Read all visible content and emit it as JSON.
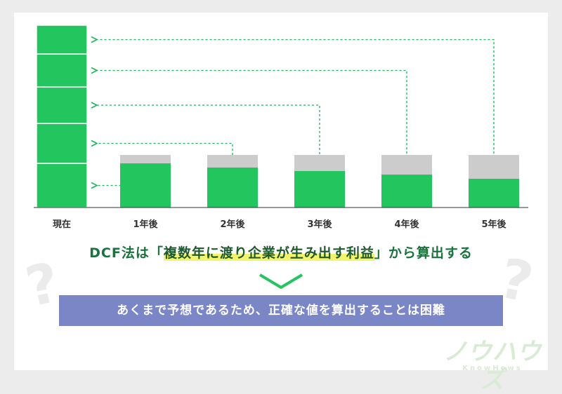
{
  "colors": {
    "present_value": "#22c55e",
    "discount": "#cccccc",
    "arrow": "#22b35a",
    "statement": "#19733d",
    "highlight": "#f4f36a",
    "conclusion_bg": "#7a86c6"
  },
  "chart_data": {
    "type": "bar",
    "categories": [
      "現在",
      "1年後",
      "2年後",
      "3年後",
      "4年後",
      "5年後"
    ],
    "series": [
      {
        "values": [
          null,
          63,
          57,
          52,
          47,
          41
        ]
      },
      {
        "values": [
          null,
          12,
          18,
          23,
          28,
          34
        ]
      }
    ],
    "present_stack": [
      63,
      57,
      52,
      47,
      41
    ]
  },
  "statement": {
    "before": "DCF法は「",
    "highlight": "複数年に渡り企業が生み出す利益",
    "after": "」から算出する"
  },
  "conclusion": "あくまで予想であるため、正確な値を算出することは困難",
  "decor": {
    "question_mark": "?",
    "chevron_icon": "chevron-down-icon"
  },
  "logo": {
    "text": "ノウハウズ",
    "sub": "KnowHows"
  }
}
